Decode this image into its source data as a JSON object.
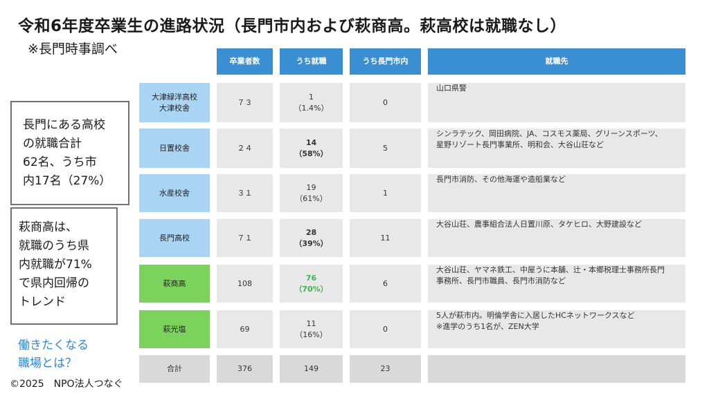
{
  "title": "令和6年度卒業生の進路状況（長門市内および萩商高。萩高校は就職なし）",
  "subtitle": "※長門時事調べ",
  "note1": {
    "line1": "長門にある高校",
    "line2": "の就職合計",
    "line3": "62名、うち市",
    "line4": "内17名（27%）"
  },
  "note2": {
    "line1": "萩商高は、",
    "line2": "就職のうち県",
    "line3": "内就職が71%",
    "line4": "で県内回帰の",
    "line5": "トレンド"
  },
  "cta": {
    "line1": "働きたくなる",
    "line2": "職場とは？"
  },
  "copyright": "©2025　NPO法人つなぐ",
  "table": {
    "headers": {
      "graduates": "卒業者数",
      "employed": "うち就職",
      "in_city": "うち長門市内",
      "destinations": "就職先"
    },
    "rows": [
      {
        "school_line1": "大津緑洋高校",
        "school_line2": "大津校舎",
        "graduates": "７３",
        "employed": "1",
        "employed_pct": "（1.4%）",
        "in_city": "0",
        "dest_line1": "山口県警",
        "dest_line2": ""
      },
      {
        "school_line1": "日置校舎",
        "school_line2": "",
        "graduates": "２４",
        "employed": "14",
        "employed_pct": "（58%）",
        "in_city": "5",
        "dest_line1": "シンラテック、岡田病院、JA、コスモス薬局、グリーンスポーツ、",
        "dest_line2": "星野リゾート長門事業所、明和会、大谷山荘など"
      },
      {
        "school_line1": "水産校舎",
        "school_line2": "",
        "graduates": "３１",
        "employed": "19",
        "employed_pct": "（61%）",
        "in_city": "1",
        "dest_line1": "長門市消防、その他海運や造船業など",
        "dest_line2": ""
      },
      {
        "school_line1": "長門高校",
        "school_line2": "",
        "graduates": "７１",
        "employed": "28",
        "employed_pct": "（39%）",
        "in_city": "11",
        "dest_line1": "大谷山荘、農事組合法人日置川原、タケヒロ、大野建設など",
        "dest_line2": ""
      },
      {
        "school_line1": "萩商高",
        "school_line2": "",
        "graduates": "108",
        "employed": "76",
        "employed_pct": "（70%）",
        "in_city": "6",
        "dest_line1": "大谷山荘、ヤマネ鉄工、中屋うに本舗、辻・本郷税理士事務所長門",
        "dest_line2": "事務所、長門市職員、長門市消防など"
      },
      {
        "school_line1": "萩光塩",
        "school_line2": "",
        "graduates": "69",
        "employed": "11",
        "employed_pct": "（16%）",
        "in_city": "0",
        "dest_line1": "5人が萩市内。明倫学舎に入居したHCネットワークスなど",
        "dest_line2": "※進学のうち1名が、ZEN大学"
      }
    ],
    "total": {
      "label": "合計",
      "graduates": "376",
      "employed": "149",
      "in_city": "23",
      "destinations": ""
    }
  },
  "colors": {
    "header": "#3a8fd3",
    "school_blue": "#a9d4f3",
    "school_green": "#7cd35c",
    "cell_gray": "#e8e8e8",
    "highlight_green_text": "#3cb44b",
    "link_blue": "#2f86d6"
  }
}
